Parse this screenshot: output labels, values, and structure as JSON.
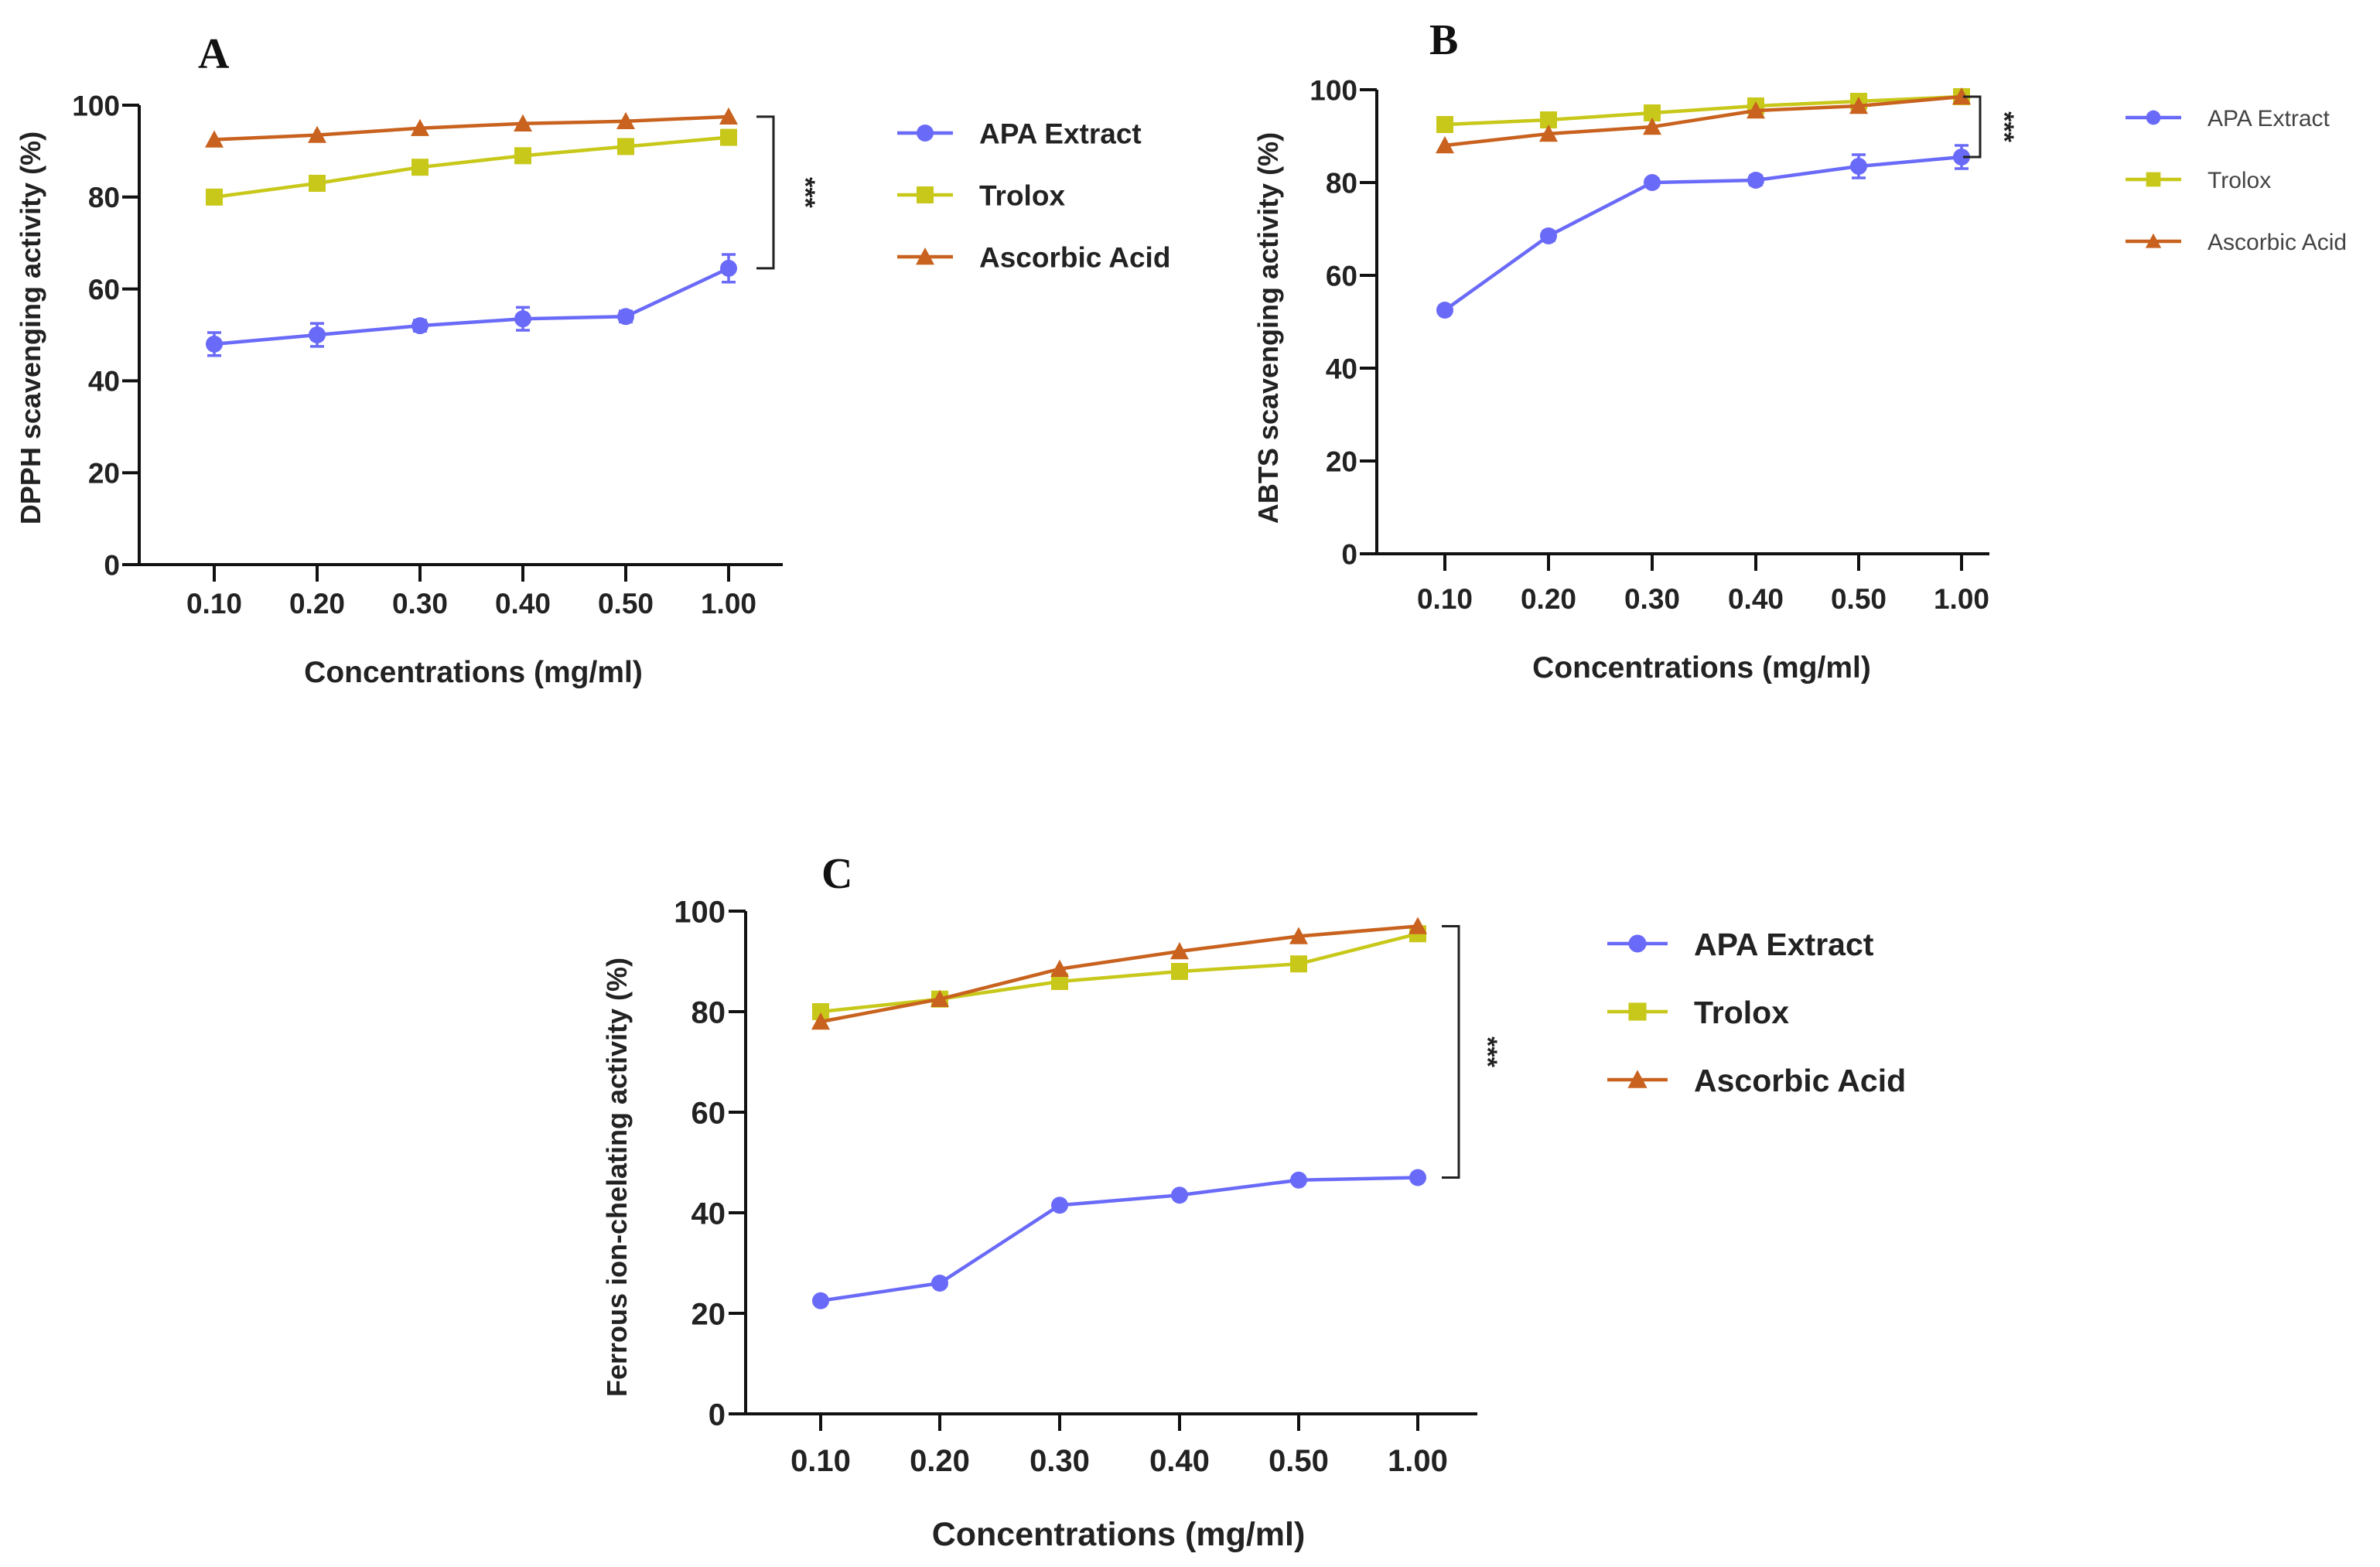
{
  "chart_data": [
    {
      "type": "line",
      "panel_label": "A",
      "categories": [
        "0.10",
        "0.20",
        "0.30",
        "0.40",
        "0.50",
        "1.00"
      ],
      "xlabel": "Concentrations (mg/ml)",
      "ylabel": "DPPH scavenging activity (%)",
      "ylim": [
        0,
        100
      ],
      "yticks": [
        "0",
        "20",
        "40",
        "60",
        "80",
        "100"
      ],
      "significance": "***",
      "series": [
        {
          "name": "APA Extract",
          "marker": "circle",
          "color": "#6a6af8",
          "values": [
            48,
            50,
            52,
            53.5,
            54,
            64.5
          ],
          "errors": [
            2.5,
            2.5,
            1.2,
            2.5,
            1.2,
            3
          ]
        },
        {
          "name": "Trolox",
          "marker": "square",
          "color": "#c8c81a",
          "values": [
            80,
            83,
            86.5,
            89,
            91,
            93
          ],
          "errors": [
            0,
            0,
            0,
            0,
            0,
            0
          ]
        },
        {
          "name": "Ascorbic Acid",
          "marker": "triangle",
          "color": "#c8621e",
          "values": [
            92.5,
            93.5,
            95,
            96,
            96.5,
            97.5
          ],
          "errors": [
            0,
            0,
            0,
            0,
            0,
            0
          ]
        }
      ]
    },
    {
      "type": "line",
      "panel_label": "B",
      "categories": [
        "0.10",
        "0.20",
        "0.30",
        "0.40",
        "0.50",
        "1.00"
      ],
      "xlabel": "Concentrations (mg/ml)",
      "ylabel": "ABTS scavenging activity (%)",
      "ylim": [
        0,
        100
      ],
      "yticks": [
        "0",
        "20",
        "40",
        "60",
        "80",
        "100"
      ],
      "significance": "***",
      "series": [
        {
          "name": "APA Extract",
          "marker": "circle",
          "color": "#6a6af8",
          "values": [
            52.5,
            68.5,
            80,
            80.5,
            83.5,
            85.5
          ],
          "errors": [
            0,
            1,
            0,
            1,
            2.5,
            2.5
          ]
        },
        {
          "name": "Trolox",
          "marker": "square",
          "color": "#c8c81a",
          "values": [
            92.5,
            93.5,
            95,
            96.5,
            97.5,
            98.5
          ],
          "errors": [
            0,
            0,
            0,
            0,
            0,
            0
          ]
        },
        {
          "name": "Ascorbic Acid",
          "marker": "triangle",
          "color": "#c8621e",
          "values": [
            88,
            90.5,
            92,
            95.5,
            96.5,
            98.5
          ],
          "errors": [
            0,
            0,
            0,
            0,
            0,
            0
          ]
        }
      ]
    },
    {
      "type": "line",
      "panel_label": "C",
      "categories": [
        "0.10",
        "0.20",
        "0.30",
        "0.40",
        "0.50",
        "1.00"
      ],
      "xlabel": "Concentrations (mg/ml)",
      "ylabel": "Ferrous ion-chelating activity (%)",
      "ylim": [
        0,
        100
      ],
      "yticks": [
        "0",
        "20",
        "40",
        "60",
        "80",
        "100"
      ],
      "significance": "***",
      "series": [
        {
          "name": "APA Extract",
          "marker": "circle",
          "color": "#6a6af8",
          "values": [
            22.5,
            26,
            41.5,
            43.5,
            46.5,
            47
          ],
          "errors": [
            0,
            0,
            0,
            0,
            0,
            0
          ]
        },
        {
          "name": "Trolox",
          "marker": "square",
          "color": "#c8c81a",
          "values": [
            80,
            82.5,
            86,
            88,
            89.5,
            95.5
          ],
          "errors": [
            0,
            0,
            0,
            0,
            0,
            0
          ]
        },
        {
          "name": "Ascorbic Acid",
          "marker": "triangle",
          "color": "#c8621e",
          "values": [
            78,
            82.5,
            88.5,
            92,
            95,
            97
          ],
          "errors": [
            0,
            0,
            0,
            0,
            0,
            0
          ]
        }
      ]
    }
  ]
}
